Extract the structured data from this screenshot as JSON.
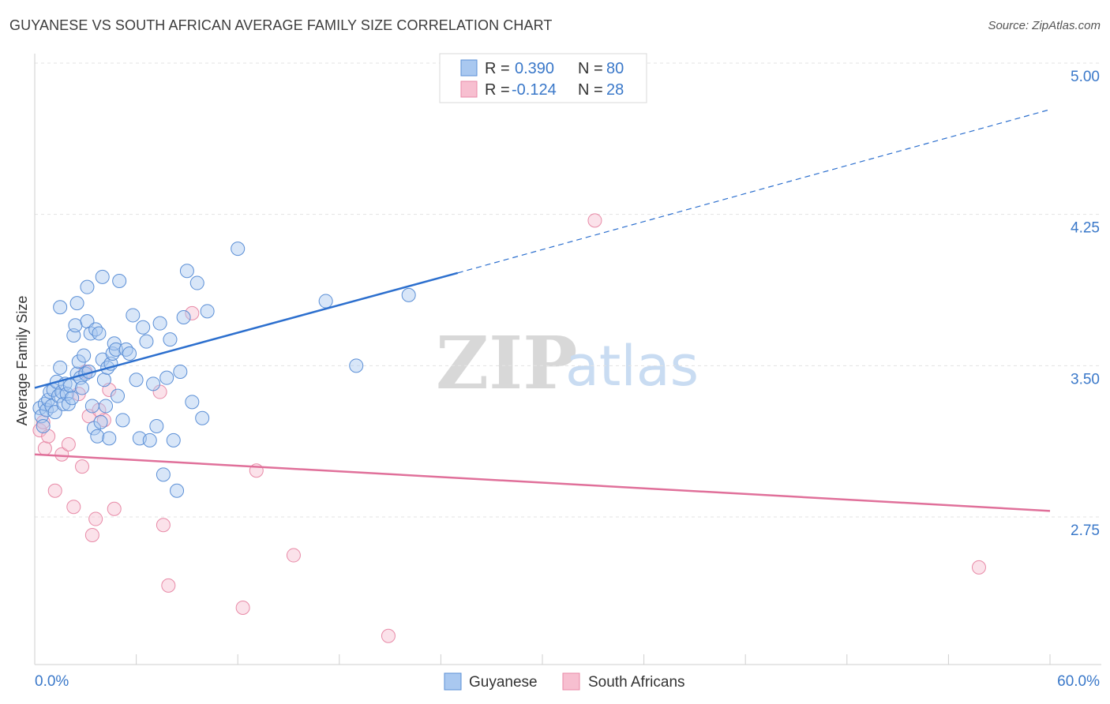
{
  "title": "GUYANESE VS SOUTH AFRICAN AVERAGE FAMILY SIZE CORRELATION CHART",
  "source": "Source: ZipAtlas.com",
  "watermark": {
    "zip": "ZIP",
    "atlas": "atlas"
  },
  "colors": {
    "guyanese_fill": "#a9c8f0",
    "guyanese_stroke": "#5b8fd6",
    "guyanese_line": "#2c6fce",
    "sa_fill": "#f7bfd0",
    "sa_stroke": "#e88aa7",
    "sa_line": "#e0709a",
    "tick_text": "#3a78c9",
    "grid": "#e3e3e3"
  },
  "legend": {
    "rows": [
      {
        "r_label": "R =",
        "r_value": "0.390",
        "n_label": "N =",
        "n_value": "80",
        "series": "guyanese"
      },
      {
        "r_label": "R =",
        "r_value": "-0.124",
        "n_label": "N =",
        "n_value": "28",
        "series": "sa"
      }
    ]
  },
  "bottom_legend": [
    "Guyanese",
    "South Africans"
  ],
  "chart_data": {
    "type": "scatter",
    "title": "GUYANESE VS SOUTH AFRICAN AVERAGE FAMILY SIZE CORRELATION CHART",
    "xlabel": "",
    "ylabel": "Average Family Size",
    "xlim": [
      0,
      60
    ],
    "ylim": [
      2.0,
      5.1
    ],
    "x_tick_labels": [
      "0.0%",
      "60.0%"
    ],
    "y_ticks": [
      5.0,
      4.25,
      3.5,
      2.75
    ],
    "y_tick_labels": [
      "5.00",
      "4.25",
      "3.50",
      "2.75"
    ],
    "grid": true,
    "series": [
      {
        "name": "Guyanese",
        "color": "#a9c8f0",
        "r": 0.39,
        "n": 80,
        "trend": {
          "x0": 0,
          "y0": 3.39,
          "x1": 25,
          "y1": 3.96,
          "dashed_to_x": 60,
          "dashed_to_y": 4.77
        },
        "points": [
          [
            0.3,
            3.29
          ],
          [
            0.4,
            3.25
          ],
          [
            0.5,
            3.2
          ],
          [
            0.6,
            3.31
          ],
          [
            0.7,
            3.28
          ],
          [
            0.8,
            3.33
          ],
          [
            0.9,
            3.37
          ],
          [
            1.0,
            3.3
          ],
          [
            1.1,
            3.38
          ],
          [
            1.2,
            3.27
          ],
          [
            1.3,
            3.42
          ],
          [
            1.4,
            3.35
          ],
          [
            1.5,
            3.49
          ],
          [
            1.6,
            3.37
          ],
          [
            1.7,
            3.31
          ],
          [
            1.8,
            3.41
          ],
          [
            1.9,
            3.36
          ],
          [
            2.0,
            3.31
          ],
          [
            2.1,
            3.4
          ],
          [
            2.2,
            3.34
          ],
          [
            2.3,
            3.65
          ],
          [
            2.4,
            3.7
          ],
          [
            2.5,
            3.46
          ],
          [
            2.6,
            3.52
          ],
          [
            2.7,
            3.44
          ],
          [
            2.8,
            3.39
          ],
          [
            2.9,
            3.55
          ],
          [
            3.0,
            3.46
          ],
          [
            3.1,
            3.72
          ],
          [
            3.2,
            3.47
          ],
          [
            3.3,
            3.66
          ],
          [
            3.4,
            3.3
          ],
          [
            3.5,
            3.19
          ],
          [
            3.6,
            3.68
          ],
          [
            3.7,
            3.15
          ],
          [
            3.8,
            3.66
          ],
          [
            3.9,
            3.22
          ],
          [
            4.0,
            3.53
          ],
          [
            4.1,
            3.43
          ],
          [
            4.2,
            3.3
          ],
          [
            4.3,
            3.49
          ],
          [
            4.4,
            3.14
          ],
          [
            4.5,
            3.51
          ],
          [
            4.6,
            3.56
          ],
          [
            4.7,
            3.61
          ],
          [
            4.8,
            3.58
          ],
          [
            4.9,
            3.35
          ],
          [
            5.0,
            3.92
          ],
          [
            5.2,
            3.23
          ],
          [
            5.4,
            3.58
          ],
          [
            5.6,
            3.56
          ],
          [
            5.8,
            3.75
          ],
          [
            6.0,
            3.43
          ],
          [
            6.2,
            3.14
          ],
          [
            6.4,
            3.69
          ],
          [
            6.6,
            3.62
          ],
          [
            6.8,
            3.13
          ],
          [
            7.0,
            3.41
          ],
          [
            7.2,
            3.2
          ],
          [
            7.4,
            3.71
          ],
          [
            7.6,
            2.96
          ],
          [
            7.8,
            3.44
          ],
          [
            8.0,
            3.63
          ],
          [
            8.2,
            3.13
          ],
          [
            8.4,
            2.88
          ],
          [
            8.6,
            3.47
          ],
          [
            8.8,
            3.74
          ],
          [
            9.0,
            3.97
          ],
          [
            9.3,
            3.32
          ],
          [
            9.6,
            3.91
          ],
          [
            9.9,
            3.24
          ],
          [
            10.2,
            3.77
          ],
          [
            1.5,
            3.79
          ],
          [
            2.5,
            3.81
          ],
          [
            3.1,
            3.89
          ],
          [
            4.0,
            3.94
          ],
          [
            12.0,
            4.08
          ],
          [
            17.2,
            3.82
          ],
          [
            19.0,
            3.5
          ],
          [
            22.1,
            3.85
          ]
        ]
      },
      {
        "name": "South Africans",
        "color": "#f7bfd0",
        "r": -0.124,
        "n": 28,
        "trend": {
          "x0": 0,
          "y0": 3.06,
          "x1": 60,
          "y1": 2.78
        },
        "points": [
          [
            0.3,
            3.18
          ],
          [
            0.5,
            3.22
          ],
          [
            0.6,
            3.09
          ],
          [
            0.8,
            3.15
          ],
          [
            1.2,
            2.88
          ],
          [
            1.6,
            3.06
          ],
          [
            2.0,
            3.11
          ],
          [
            2.3,
            2.8
          ],
          [
            2.6,
            3.36
          ],
          [
            2.8,
            3.0
          ],
          [
            3.0,
            3.47
          ],
          [
            3.2,
            3.25
          ],
          [
            3.4,
            2.66
          ],
          [
            3.6,
            2.74
          ],
          [
            3.8,
            3.28
          ],
          [
            4.1,
            3.23
          ],
          [
            4.4,
            3.38
          ],
          [
            4.7,
            2.79
          ],
          [
            7.4,
            3.37
          ],
          [
            7.6,
            2.71
          ],
          [
            7.9,
            2.41
          ],
          [
            9.3,
            3.76
          ],
          [
            12.3,
            2.3
          ],
          [
            13.1,
            2.98
          ],
          [
            15.3,
            2.56
          ],
          [
            20.9,
            2.16
          ],
          [
            33.1,
            4.22
          ],
          [
            55.8,
            2.5
          ]
        ]
      }
    ]
  }
}
